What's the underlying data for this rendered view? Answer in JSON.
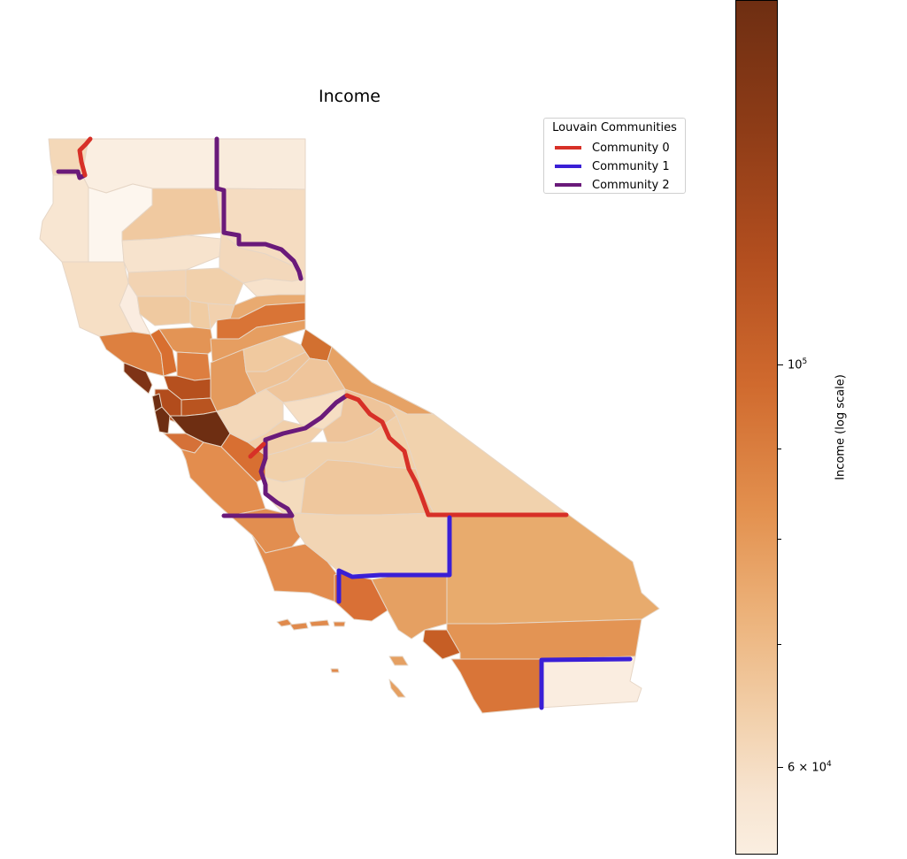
{
  "map": {
    "title": "Income"
  },
  "legend": {
    "title": "Louvain Communities",
    "items": [
      {
        "label": "Community 0",
        "color": "#d73027"
      },
      {
        "label": "Community 1",
        "color": "#3a1fd6"
      },
      {
        "label": "Community 2",
        "color": "#6a1a7a"
      }
    ]
  },
  "colorbar": {
    "label": "Income (log scale)",
    "scale": "log",
    "colormap": "Oranges-like",
    "color_low": "#faeee0",
    "color_high": "#6e2e12",
    "tick_labels": {
      "major": "10^5",
      "lower": "6 × 10^4"
    }
  }
}
